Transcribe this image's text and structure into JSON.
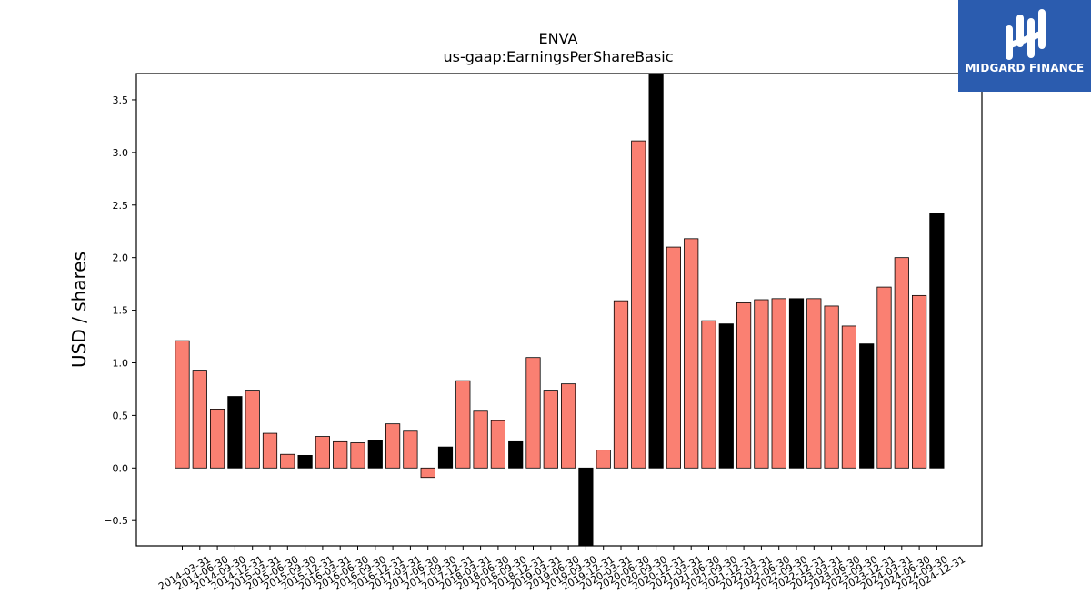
{
  "chart_data": {
    "type": "bar",
    "title": "ENVA",
    "subtitle": "us-gaap:EarningsPerShareBasic",
    "xlabel": "",
    "ylabel": "USD / shares",
    "ylim": [
      -0.74,
      3.75
    ],
    "yticks": [
      -0.5,
      0.0,
      0.5,
      1.0,
      1.5,
      2.0,
      2.5,
      3.0,
      3.5
    ],
    "grid": false,
    "categories": [
      "2014-03-31",
      "2014-06-30",
      "2014-09-30",
      "2014-12-31",
      "2015-03-31",
      "2015-06-30",
      "2015-09-30",
      "2015-12-31",
      "2016-03-31",
      "2016-06-30",
      "2016-09-30",
      "2016-12-31",
      "2017-03-31",
      "2017-06-30",
      "2017-09-30",
      "2017-12-31",
      "2018-03-31",
      "2018-06-30",
      "2018-09-30",
      "2018-12-31",
      "2019-03-31",
      "2019-06-30",
      "2019-09-30",
      "2019-12-31",
      "2020-03-31",
      "2020-06-30",
      "2020-09-30",
      "2020-12-31",
      "2021-03-31",
      "2021-06-30",
      "2021-09-30",
      "2021-12-31",
      "2022-03-31",
      "2022-06-30",
      "2022-09-30",
      "2022-12-31",
      "2023-03-31",
      "2023-06-30",
      "2023-09-30",
      "2023-12-31",
      "2024-03-31",
      "2024-06-30",
      "2024-09-30",
      "2024-12-31"
    ],
    "values": [
      1.21,
      0.93,
      0.56,
      0.68,
      0.74,
      0.33,
      0.13,
      0.12,
      0.3,
      0.25,
      0.24,
      0.26,
      0.42,
      0.35,
      -0.09,
      0.2,
      0.83,
      0.54,
      0.45,
      0.25,
      1.05,
      0.74,
      0.8,
      -0.8,
      0.17,
      1.59,
      3.11,
      3.8,
      2.1,
      2.18,
      1.4,
      1.37,
      1.57,
      1.6,
      1.61,
      1.61,
      1.61,
      1.54,
      1.35,
      1.18,
      1.72,
      2.0,
      1.64,
      2.42
    ],
    "annual": [
      false,
      false,
      false,
      true,
      false,
      false,
      false,
      true,
      false,
      false,
      false,
      true,
      false,
      false,
      false,
      true,
      false,
      false,
      false,
      true,
      false,
      false,
      false,
      true,
      false,
      false,
      false,
      true,
      false,
      false,
      false,
      true,
      false,
      false,
      false,
      true,
      false,
      false,
      false,
      true,
      false,
      false,
      false,
      true
    ],
    "colors": {
      "quarterly": "#fa8072",
      "annual": "#000000",
      "edge": "#000000"
    }
  },
  "logo": {
    "text": "MIDGARD FINANCE",
    "background": "#2b5caf"
  }
}
